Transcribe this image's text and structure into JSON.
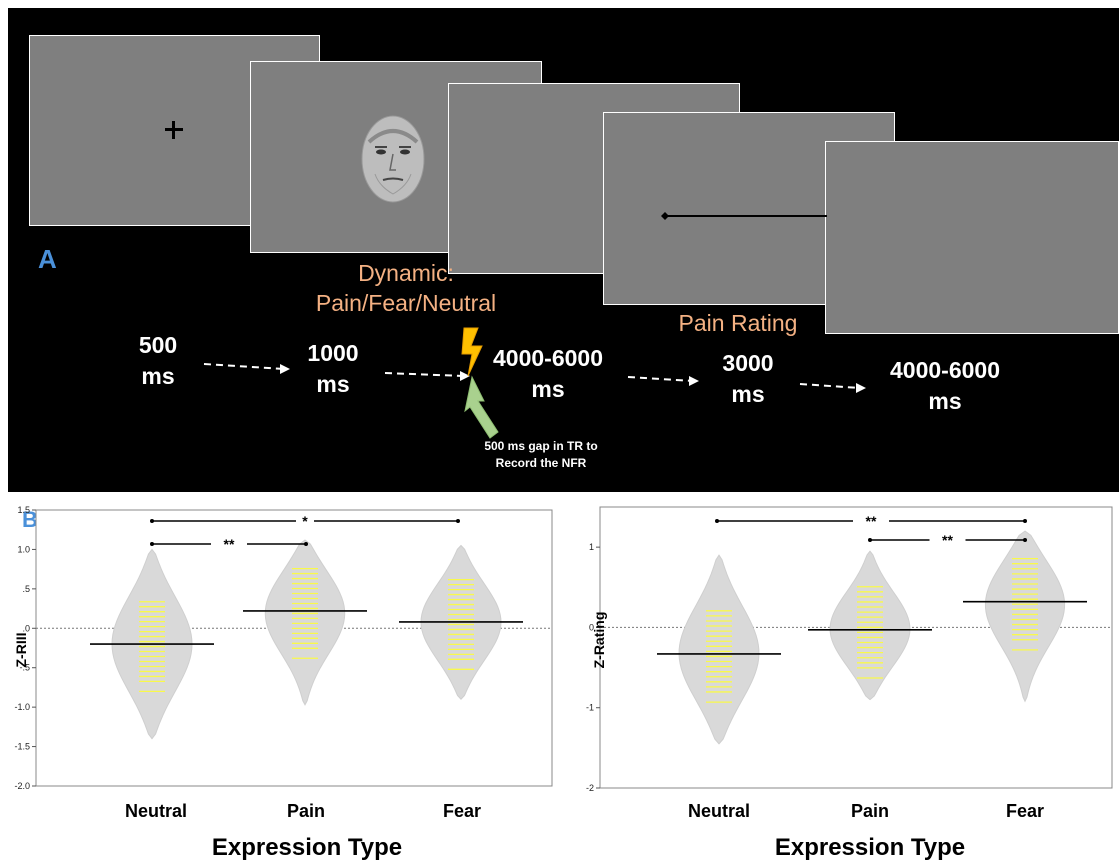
{
  "panel_a": {
    "letter": "A",
    "dynamic_label_1": "Dynamic:",
    "dynamic_label_2": "Pain/Fear/Neutral",
    "pain_rating_label": "Pain Rating",
    "timings": [
      {
        "value": "500",
        "unit": "ms"
      },
      {
        "value": "1000",
        "unit": "ms"
      },
      {
        "value": "4000-6000",
        "unit": "ms"
      },
      {
        "value": "3000",
        "unit": "ms"
      },
      {
        "value": "4000-6000",
        "unit": "ms"
      }
    ],
    "gap_note_1": "500 ms gap in TR to",
    "gap_note_2": "Record the NFR",
    "colors": {
      "screen": "#7f7f7f",
      "orange_text": "#f4b183",
      "bolt": "#ffc000",
      "arrow": "#a9d18e",
      "letter": "#4a90d9"
    }
  },
  "panel_b": {
    "letter": "B",
    "xlabel": "Expression Type",
    "categories": [
      "Neutral",
      "Pain",
      "Fear"
    ]
  },
  "chart_data": [
    {
      "type": "violin",
      "ylabel": "Z-RIII",
      "xlabel": "Expression Type",
      "categories": [
        "Neutral",
        "Pain",
        "Fear"
      ],
      "ylim": [
        -2.0,
        1.5
      ],
      "ytick_labels": [
        "1.5",
        "1.0",
        ".5",
        ".0",
        "-.5",
        "-1.0",
        "-1.5",
        "-2.0"
      ],
      "reference_line": 0.0,
      "means": [
        -0.2,
        0.22,
        0.08
      ],
      "violin_extents": [
        [
          -1.4,
          1.0
        ],
        [
          -0.97,
          1.12
        ],
        [
          -0.9,
          1.05
        ]
      ],
      "significance": [
        {
          "from": "Neutral",
          "to": "Fear",
          "label": "*"
        },
        {
          "from": "Neutral",
          "to": "Pain",
          "label": "**"
        }
      ]
    },
    {
      "type": "violin",
      "ylabel": "Z-Rating",
      "xlabel": "Expression Type",
      "categories": [
        "Neutral",
        "Pain",
        "Fear"
      ],
      "ylim": [
        -2.0,
        1.5
      ],
      "ytick_labels": [
        "1",
        "0",
        "-1",
        "-2"
      ],
      "ytick_values": [
        1,
        0,
        -1,
        -2
      ],
      "reference_line": 0.0,
      "means": [
        -0.33,
        -0.03,
        0.32
      ],
      "violin_extents": [
        [
          -1.45,
          0.9
        ],
        [
          -0.9,
          0.95
        ],
        [
          -0.92,
          1.2
        ]
      ],
      "significance": [
        {
          "from": "Neutral",
          "to": "Fear",
          "label": "**"
        },
        {
          "from": "Pain",
          "to": "Fear",
          "label": "**"
        }
      ]
    }
  ]
}
